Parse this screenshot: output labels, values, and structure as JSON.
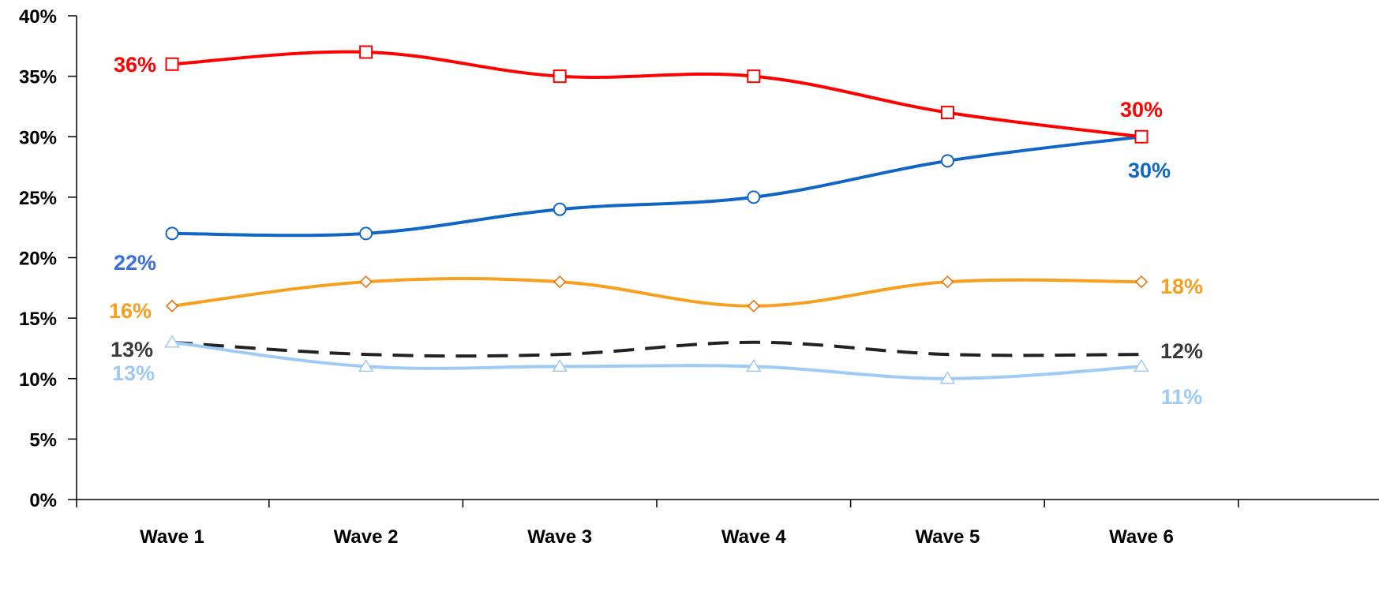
{
  "chart_data": {
    "type": "line",
    "categories": [
      "Wave 1",
      "Wave 2",
      "Wave 3",
      "Wave 4",
      "Wave 5",
      "Wave 6"
    ],
    "ylim": [
      0,
      40
    ],
    "yticks": [
      "0%",
      "5%",
      "10%",
      "15%",
      "20%",
      "25%",
      "30%",
      "35%",
      "40%"
    ],
    "grid": false,
    "series": [
      {
        "values": [
          36,
          37,
          35,
          35,
          32,
          30
        ],
        "color": "#ff0000",
        "marker": "square",
        "dashed": false,
        "labels": {
          "start": "36%",
          "end": "30%"
        }
      },
      {
        "values": [
          22,
          22,
          24,
          25,
          28,
          30
        ],
        "color": "#0f66c4",
        "marker": "circle",
        "dashed": false,
        "labels": {
          "start": "22%",
          "end": "30%"
        },
        "label_colors": {
          "start": "#3b6ee0",
          "end": "#0f66c4"
        }
      },
      {
        "values": [
          16,
          18,
          18,
          16,
          18,
          18
        ],
        "color": "#f7a01e",
        "marker": "diamond",
        "dashed": false,
        "labels": {
          "start": "16%",
          "end": "18%"
        }
      },
      {
        "values": [
          13,
          12,
          12,
          13,
          12,
          12
        ],
        "color": "#222222",
        "marker": "none",
        "dashed": true,
        "labels": {
          "start": "13%",
          "end": "12%"
        },
        "label_colors": {
          "start": "#3a3a3a",
          "end": "#3a3a3a"
        }
      },
      {
        "values": [
          13,
          11,
          11,
          11,
          10,
          11
        ],
        "color": "#9dcaf6",
        "marker": "triangle",
        "dashed": false,
        "labels": {
          "start": "13%",
          "end": "11%"
        }
      }
    ]
  }
}
